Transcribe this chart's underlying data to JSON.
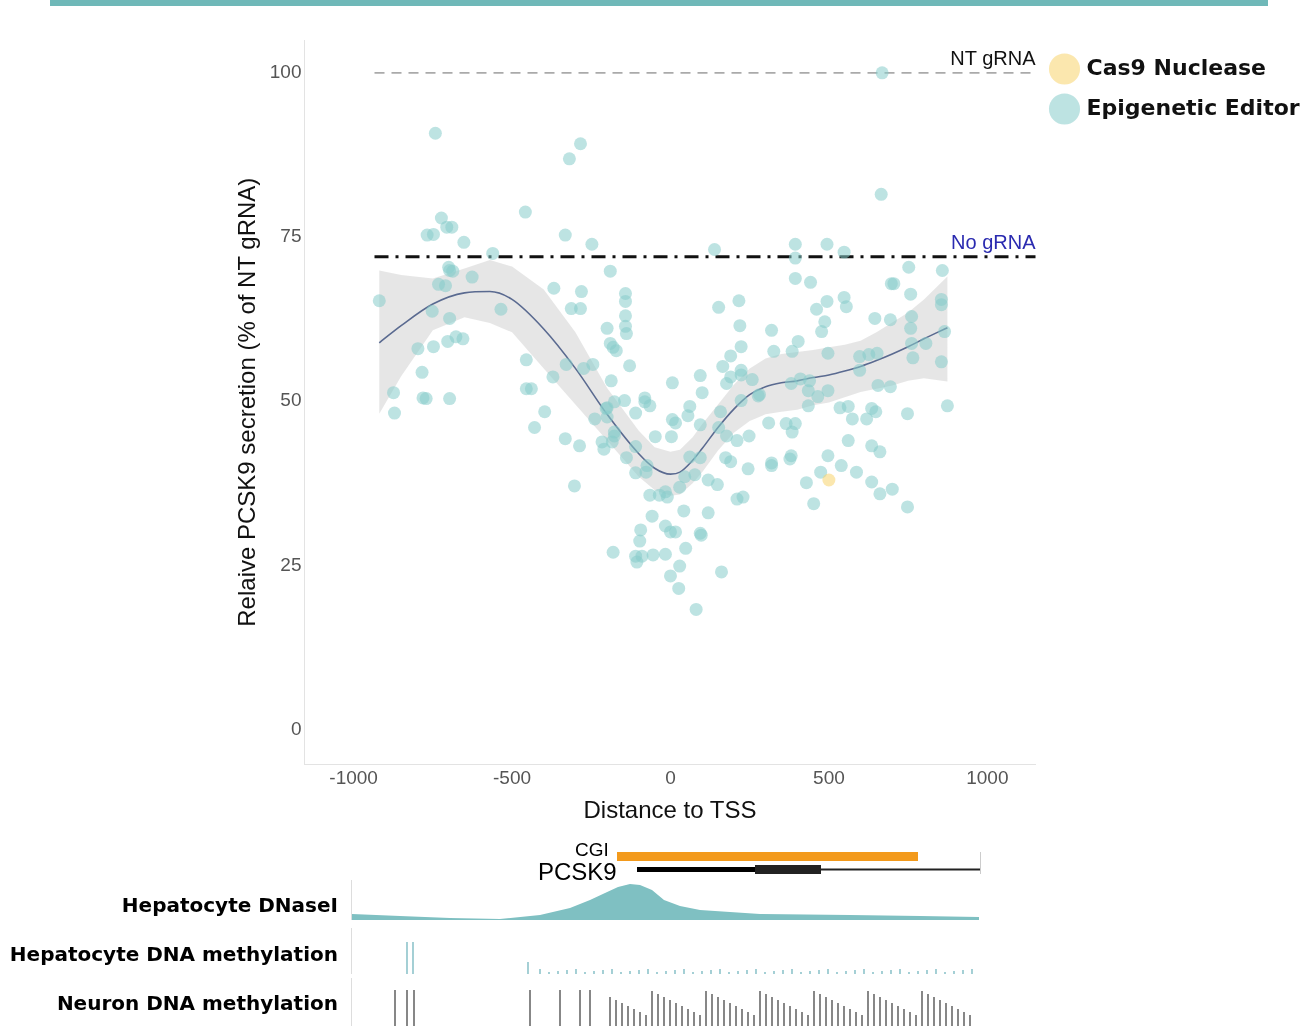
{
  "chart_data": {
    "type": "scatter",
    "xlabel": "Distance to TSS",
    "ylabel": "Relaive PCSK9 secretion (% of NT gRNA)",
    "xlim": [
      -1155,
      1152
    ],
    "ylim": [
      -5.3,
      105
    ],
    "xticks": [
      -1000,
      -500,
      0,
      500,
      1000
    ],
    "yticks": [
      0,
      25,
      50,
      75,
      100
    ],
    "grid": false,
    "legend": "right",
    "marker": "circle",
    "ref_lines": [
      {
        "axis": "y",
        "value": 100,
        "label": "NT gRNA",
        "color": "#aaaaaa",
        "line_style": "dashed"
      },
      {
        "axis": "y",
        "value": 72,
        "label": "No gRNA",
        "color": "#111111",
        "line_style": "dashdot"
      }
    ],
    "annotations": [
      "CGI",
      "PCSK9",
      "Hepatocyte DNaseI",
      "Hepatocyte DNA methylation",
      "Neuron DNA methylation"
    ],
    "series": [
      {
        "name": "Cas9 Nuclease",
        "color": "#f7d36b",
        "x": [
          500
        ],
        "values": [
          38
        ]
      },
      {
        "name": "Epigenetic Editor",
        "color": "#86cccb",
        "x": [
          -919,
          -874,
          -871,
          -797,
          -784,
          -781,
          -771,
          -768,
          -748,
          -742,
          -723,
          -706,
          -690,
          -700,
          -697,
          -687,
          -752,
          -732,
          -710,
          -697,
          -677,
          -703,
          -748,
          -697,
          -655,
          -652,
          -626,
          -561,
          -535,
          -458,
          -455,
          -455,
          -439,
          -429,
          -397,
          -371,
          -368,
          -332,
          -319,
          -284,
          -329,
          -332,
          -303,
          -313,
          -281,
          -284,
          -248,
          -287,
          -274,
          -239,
          -187,
          -203,
          -190,
          -184,
          -181,
          139,
          -142,
          -142,
          -142,
          -142,
          -139,
          -200,
          -190,
          -181,
          -171,
          -129,
          -245,
          -200,
          -200,
          -177,
          -145,
          -177,
          -177,
          -216,
          -210,
          -139,
          -110,
          -110,
          -81,
          -81,
          -65,
          -110,
          -74,
          -77,
          -48,
          6,
          6,
          16,
          3,
          61,
          55,
          94,
          100,
          94,
          152,
          216,
          219,
          223,
          190,
          165,
          190,
          223,
          223,
          177,
          258,
          277,
          223,
          158,
          152,
          177,
          210,
          248,
          174,
          190,
          245,
          210,
          229,
          61,
          94,
          77,
          45,
          119,
          148,
          29,
          -65,
          -35,
          -16,
          -10,
          42,
          119,
          -58,
          -94,
          -97,
          -16,
          0,
          16,
          94,
          97,
          -110,
          -90,
          -55,
          -16,
          -106,
          48,
          29,
          0,
          26,
          161,
          81,
          668,
          665,
          394,
          494,
          548,
          394,
          752,
          858,
          394,
          442,
          697,
          705,
          319,
          548,
          555,
          494,
          461,
          487,
          477,
          645,
          694,
          758,
          855,
          855,
          761,
          758,
          761,
          765,
          806,
          865,
          855,
          874,
          326,
          384,
          403,
          497,
          597,
          626,
          652,
          597,
          655,
          694,
          281,
          381,
          410,
          439,
          435,
          465,
          497,
          435,
          535,
          561,
          574,
          619,
          635,
          648,
          748,
          310,
          365,
          384,
          394,
          561,
          635,
          661,
          319,
          319,
          381,
          377,
          497,
          539,
          587,
          474,
          429,
          635,
          661,
          700,
          452,
          748
        ],
        "values": [
          65.3,
          51.3,
          48.2,
          58,
          54.4,
          50.5,
          50.4,
          75.3,
          75.4,
          90.8,
          77.9,
          76.5,
          76.5,
          70.4,
          69.9,
          69.8,
          63.7,
          67.8,
          67.6,
          62.6,
          59.8,
          59.1,
          58.3,
          50.4,
          59.5,
          74.2,
          68.9,
          72.5,
          64,
          78.8,
          56.3,
          51.9,
          51.9,
          46,
          48.4,
          53.7,
          67.2,
          75.3,
          86.9,
          89.2,
          55.6,
          44.3,
          37.1,
          64.1,
          66.7,
          64.1,
          73.9,
          43.2,
          55,
          47.3,
          53.1,
          48.9,
          69.8,
          43.8,
          27,
          73.1,
          66.4,
          65.2,
          63,
          61.4,
          60.3,
          61.1,
          58.8,
          58.2,
          57.7,
          55.4,
          55.6,
          49,
          47.6,
          49.9,
          50.1,
          45.3,
          44.7,
          43.8,
          42.7,
          41.4,
          48.2,
          43.1,
          50.5,
          49.9,
          49.3,
          39.1,
          40.2,
          39.2,
          44.6,
          52.8,
          47.2,
          46.7,
          44.6,
          49.2,
          47.8,
          53.9,
          51.3,
          46.4,
          64.3,
          65.3,
          61.5,
          58.3,
          56.9,
          55.3,
          53.7,
          54.7,
          54,
          52.7,
          53.3,
          50.8,
          50.1,
          48.4,
          46,
          44.7,
          44,
          44.7,
          41.4,
          40.8,
          39.7,
          35.1,
          35.4,
          41.5,
          41.4,
          38.8,
          38.5,
          38,
          37.3,
          36.9,
          35.7,
          35.7,
          36.2,
          35.4,
          33.3,
          33,
          32.5,
          30.4,
          28.7,
          31,
          30.1,
          30.1,
          29.9,
          29.6,
          26.4,
          26.4,
          26.6,
          26.7,
          25.5,
          27.6,
          24.9,
          23.4,
          21.5,
          24,
          18.3,
          100,
          81.5,
          73.9,
          73.9,
          72.7,
          71.8,
          70.4,
          69.9,
          68.7,
          68.1,
          67.9,
          67.9,
          60.8,
          65.8,
          64.4,
          65.2,
          64,
          62.1,
          60.6,
          62.6,
          62.4,
          66.3,
          65.5,
          64.7,
          62.9,
          61.1,
          58.8,
          56.6,
          58.8,
          60.6,
          56,
          49.3,
          57.6,
          57.6,
          59.1,
          57.3,
          56.8,
          57.1,
          57.3,
          54.7,
          52.4,
          52.2,
          51,
          52.7,
          53.4,
          53.1,
          51.6,
          50.7,
          51.6,
          49.3,
          49,
          49.2,
          47.3,
          47.3,
          48.9,
          48.4,
          48.1,
          46.7,
          46.6,
          45.3,
          46.6,
          44,
          43.2,
          42.3,
          40.6,
          40.2,
          41.7,
          41.2,
          41.7,
          40.2,
          39.2,
          39.2,
          37.6,
          37.7,
          35.9,
          36.6,
          34.4,
          33.9
        ]
      },
      {
        "type": "line",
        "marker": "none",
        "color": "#5a6a90",
        "x": [
          -919,
          -850,
          -750,
          -650,
          -570,
          -500,
          -400,
          -300,
          -200,
          -100,
          -50,
          0,
          30,
          70,
          100,
          150,
          200,
          250,
          300,
          350,
          400,
          450,
          500,
          550,
          600,
          650,
          700,
          750,
          800,
          874
        ],
        "values": [
          58.9,
          61.5,
          64.8,
          66.5,
          66.7,
          65.5,
          61,
          55,
          48,
          42,
          39.8,
          38.9,
          39.2,
          41,
          42.8,
          46,
          48.8,
          51,
          52.2,
          52.8,
          53.1,
          53.6,
          54,
          54.6,
          55.3,
          56.2,
          57.2,
          58.3,
          59.5,
          61.2
        ],
        "upper": [
          69.9,
          69.2,
          68.7,
          70.2,
          71.5,
          70.5,
          67,
          60.5,
          52,
          45.5,
          43,
          42.3,
          42.6,
          44.5,
          46.5,
          49.5,
          52.5,
          55,
          56.5,
          57.2,
          57.5,
          57.8,
          58.2,
          58.6,
          59.2,
          60.5,
          62,
          63.5,
          65.5,
          69
        ],
        "lower": [
          48.1,
          53.8,
          60.8,
          62.8,
          61.9,
          60.5,
          55,
          49.5,
          44,
          38.5,
          36.5,
          35.6,
          35.8,
          37.5,
          39.2,
          42.5,
          45.2,
          47,
          48,
          48.4,
          48.7,
          49.4,
          49.8,
          50.6,
          51.4,
          51.9,
          52.4,
          53.1,
          53.5,
          53
        ]
      }
    ]
  }
}
